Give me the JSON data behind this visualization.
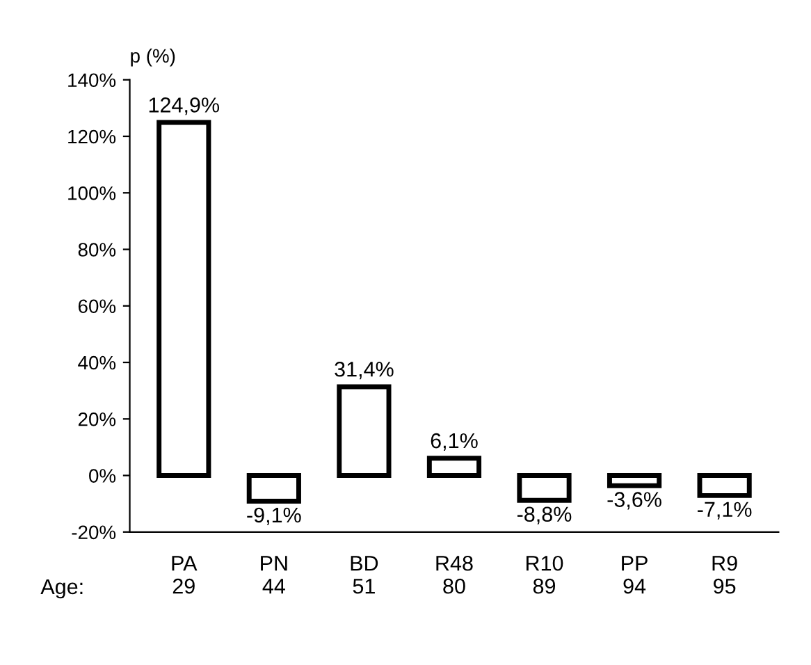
{
  "chart_data": {
    "type": "bar",
    "ylabel": "p (%)",
    "categories": [
      "PA\n29",
      "PN\n44",
      "BD\n51",
      "R48\n80",
      "R10\n89",
      "PP\n94",
      "R9\n95"
    ],
    "values": [
      124.9,
      -9.1,
      31.4,
      6.1,
      -8.8,
      -3.6,
      -7.1
    ],
    "value_labels": [
      "124,9%",
      "-9,1%",
      "31,4%",
      "6,1%",
      "-8,8%",
      "-3,6%",
      "-7,1%"
    ],
    "color": "#ffffff",
    "ylim": [
      -20,
      140
    ],
    "yticks": [
      {
        "value": -20,
        "label": "-20%"
      },
      {
        "value": 0,
        "label": "0%"
      },
      {
        "value": 20,
        "label": "20%"
      },
      {
        "value": 40,
        "label": "40%"
      },
      {
        "value": 60,
        "label": "60%"
      },
      {
        "value": 80,
        "label": "80%"
      },
      {
        "value": 100,
        "label": "100%"
      },
      {
        "value": 120,
        "label": "120%"
      },
      {
        "value": 140,
        "label": "140%"
      }
    ],
    "annotations": [
      "Age:"
    ],
    "grid": false,
    "legend": false
  }
}
